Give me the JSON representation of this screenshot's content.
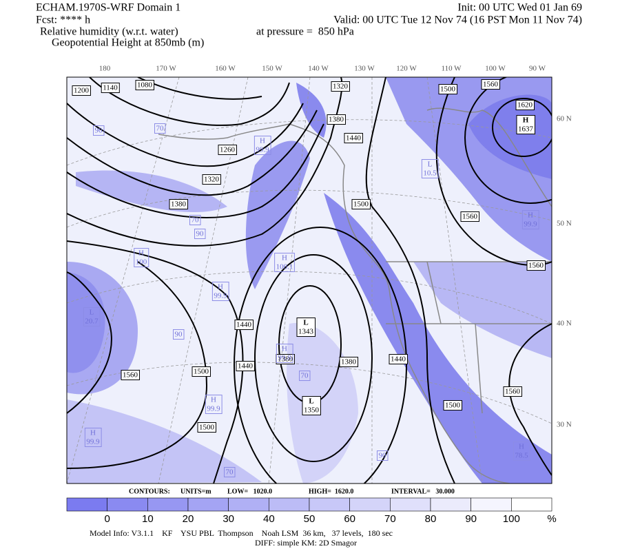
{
  "header": {
    "model": "ECHAM.1970S-WRF Domain 1",
    "init": "Init: 00 UTC Wed 01 Jan 69",
    "fcst": "Fcst: **** h",
    "valid": "Valid: 00 UTC Tue 12 Nov 74 (16 PST Mon 11 Nov 74)",
    "field1": "Relative humidity (w.r.t. water)",
    "level": "at pressure =  850 hPa",
    "field2": "Geopotential Height at 850mb (m)"
  },
  "map": {
    "longitude_labels": [
      "180",
      "170 W",
      "160 W",
      "150 W",
      "140 W",
      "130 W",
      "120 W",
      "110 W",
      "100 W",
      "90 W"
    ],
    "latitude_labels": [
      "60 N",
      "50 N",
      "40 N",
      "30 N"
    ],
    "height_contour_labels": [
      "1200",
      "1140",
      "1080",
      "1320",
      "1500",
      "1560",
      "1620",
      "1380",
      "1440",
      "1260",
      "1320",
      "1380",
      "1500",
      "1560",
      "1560",
      "1440",
      "1380",
      "1380",
      "1440",
      "1440",
      "1500",
      "1560",
      "1500",
      "1500",
      "1560"
    ],
    "centers": [
      {
        "type": "H",
        "value": "1637"
      },
      {
        "type": "L",
        "value": "1343"
      },
      {
        "type": "L",
        "value": "1350"
      }
    ],
    "rh_labels": [
      {
        "type": "H",
        "value": "99.9"
      },
      {
        "type": "H",
        "value": "100.1"
      },
      {
        "type": "H",
        "value": "100"
      },
      {
        "type": "L",
        "value": "20.7"
      },
      {
        "type": "H",
        "value": "99.9"
      },
      {
        "type": "H",
        "value": "99.9"
      },
      {
        "type": "H",
        "value": "99.9"
      },
      {
        "type": "H",
        "value": "99.8"
      },
      {
        "type": "L",
        "value": "10.5"
      },
      {
        "type": "H",
        "value": "99.9"
      },
      {
        "type": "H",
        "value": "78.5"
      },
      {
        "type": "",
        "value": "70"
      },
      {
        "type": "",
        "value": "90"
      },
      {
        "type": "",
        "value": "70"
      },
      {
        "type": "",
        "value": "90"
      },
      {
        "type": "",
        "value": "70"
      },
      {
        "type": "",
        "value": "90"
      },
      {
        "type": "",
        "value": "70"
      },
      {
        "type": "",
        "value": "90"
      }
    ]
  },
  "contour_info": {
    "contours": "CONTOURS:",
    "units": "UNITS=m",
    "low": "LOW=   1020.0",
    "high": "HIGH=  1620.0",
    "interval": "INTERVAL=   30.000"
  },
  "colorbar": {
    "labels": [
      "0",
      "10",
      "20",
      "30",
      "40",
      "50",
      "60",
      "70",
      "80",
      "90",
      "100"
    ],
    "unit": "%"
  },
  "footer": {
    "line1": "Model Info: V3.1.1    KF    YSU PBL  Thompson    Noah LSM  36 km,   37 levels,  180 sec",
    "line2": "DIFF: simple KM: 2D Smagor"
  }
}
